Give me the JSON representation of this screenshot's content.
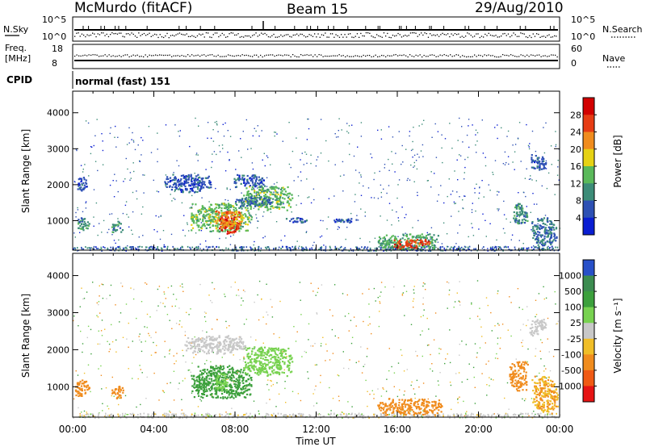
{
  "header": {
    "station": "McMurdo (fitACF)",
    "beam": "Beam 15",
    "date": "29/Aug/2010"
  },
  "top_panels": {
    "nsky_label": "N.Sky",
    "nsearch_label": "N.Search",
    "nsky_ticks": [
      "10^5",
      "10^0"
    ],
    "freq_label_1": "Freq.",
    "freq_label_2": "[MHz]",
    "freq_ticks": [
      "18",
      "8"
    ],
    "nave_label": "Nave",
    "nave_ticks": [
      "60",
      "0"
    ],
    "cpid_label": "CPID",
    "cpid_value": "normal (fast) 151"
  },
  "chart_data": [
    {
      "type": "heatmap",
      "panel": "power",
      "ylabel": "Slant Range [km]",
      "yticks": [
        1000,
        2000,
        3000,
        4000
      ],
      "ylim": [
        180,
        4600
      ],
      "xlim": [
        0,
        24
      ],
      "colorbar_label": "Power [dB]",
      "colorbar_ticks": [
        4,
        8,
        12,
        16,
        20,
        24,
        28
      ],
      "colorbar_colors": [
        "#0a1ed2",
        "#2d50b4",
        "#3c8c78",
        "#5ab95a",
        "#e6d214",
        "#f08c1e",
        "#e63c14",
        "#d20000"
      ],
      "regions": [
        {
          "t0": 0.1,
          "t1": 0.8,
          "r0": 750,
          "r1": 1100,
          "value": 10
        },
        {
          "t0": 0.2,
          "t1": 0.7,
          "r0": 1850,
          "r1": 2250,
          "value": 6
        },
        {
          "t0": 1.9,
          "t1": 2.5,
          "r0": 700,
          "r1": 1000,
          "value": 10
        },
        {
          "t0": 5.8,
          "t1": 8.8,
          "r0": 700,
          "r1": 1500,
          "value": 14
        },
        {
          "t0": 7.2,
          "t1": 8.2,
          "r0": 650,
          "r1": 1250,
          "value": 28
        },
        {
          "t0": 7.0,
          "t1": 8.4,
          "r0": 800,
          "r1": 1300,
          "value": 22
        },
        {
          "t0": 8.4,
          "t1": 10.8,
          "r0": 1300,
          "r1": 2000,
          "value": 14
        },
        {
          "t0": 8.0,
          "t1": 9.8,
          "r0": 1400,
          "r1": 1700,
          "value": 8
        },
        {
          "t0": 4.5,
          "t1": 6.8,
          "r0": 1800,
          "r1": 2300,
          "value": 6
        },
        {
          "t0": 7.8,
          "t1": 9.4,
          "r0": 1950,
          "r1": 2300,
          "value": 6
        },
        {
          "t0": 15.0,
          "t1": 18.0,
          "r0": 200,
          "r1": 650,
          "value": 12
        },
        {
          "t0": 15.8,
          "t1": 17.6,
          "r0": 250,
          "r1": 500,
          "value": 26
        },
        {
          "t0": 21.6,
          "t1": 22.4,
          "r0": 900,
          "r1": 1500,
          "value": 10
        },
        {
          "t0": 22.5,
          "t1": 23.3,
          "r0": 2400,
          "r1": 2850,
          "value": 6
        },
        {
          "t0": 22.6,
          "t1": 23.9,
          "r0": 300,
          "r1": 1100,
          "value": 8
        },
        {
          "t0": 10.5,
          "t1": 11.5,
          "r0": 950,
          "r1": 1100,
          "value": 6
        },
        {
          "t0": 12.8,
          "t1": 14.0,
          "r0": 950,
          "r1": 1100,
          "value": 6
        }
      ]
    },
    {
      "type": "heatmap",
      "panel": "velocity",
      "ylabel": "Slant Range [km]",
      "xlabel": "Time UT",
      "yticks": [
        1000,
        2000,
        3000,
        4000
      ],
      "ylim": [
        180,
        4600
      ],
      "xlim": [
        0,
        24
      ],
      "xticks": [
        "00:00",
        "04:00",
        "08:00",
        "12:00",
        "16:00",
        "20:00",
        "00:00"
      ],
      "colorbar_label": "Velocity [m s⁻¹]",
      "colorbar_ticks": [
        1000,
        500,
        100,
        25,
        -25,
        -100,
        -500,
        -1000
      ],
      "colorbar_colors": [
        "#2850c8",
        "#3c8c50",
        "#3ca03c",
        "#78d250",
        "#c8c8c8",
        "#f0be28",
        "#f08c1e",
        "#f05a14",
        "#e61414"
      ],
      "regions": [
        {
          "t0": 0.1,
          "t1": 0.8,
          "r0": 750,
          "r1": 1200,
          "value": -300
        },
        {
          "t0": 1.9,
          "t1": 2.5,
          "r0": 700,
          "r1": 1050,
          "value": -300
        },
        {
          "t0": 5.8,
          "t1": 8.8,
          "r0": 700,
          "r1": 1600,
          "value": 200
        },
        {
          "t0": 7.0,
          "t1": 7.6,
          "r0": 900,
          "r1": 1400,
          "value": 40
        },
        {
          "t0": 8.4,
          "t1": 10.8,
          "r0": 1300,
          "r1": 2100,
          "value": 60
        },
        {
          "t0": 5.5,
          "t1": 8.5,
          "r0": 1900,
          "r1": 2400,
          "value": 0
        },
        {
          "t0": 15.0,
          "t1": 18.2,
          "r0": 250,
          "r1": 700,
          "value": -300
        },
        {
          "t0": 21.5,
          "t1": 22.4,
          "r0": 900,
          "r1": 1700,
          "value": -300
        },
        {
          "t0": 22.5,
          "t1": 23.3,
          "r0": 2400,
          "r1": 2850,
          "value": 0
        },
        {
          "t0": 22.6,
          "t1": 23.9,
          "r0": 300,
          "r1": 1300,
          "value": -100
        }
      ]
    }
  ]
}
